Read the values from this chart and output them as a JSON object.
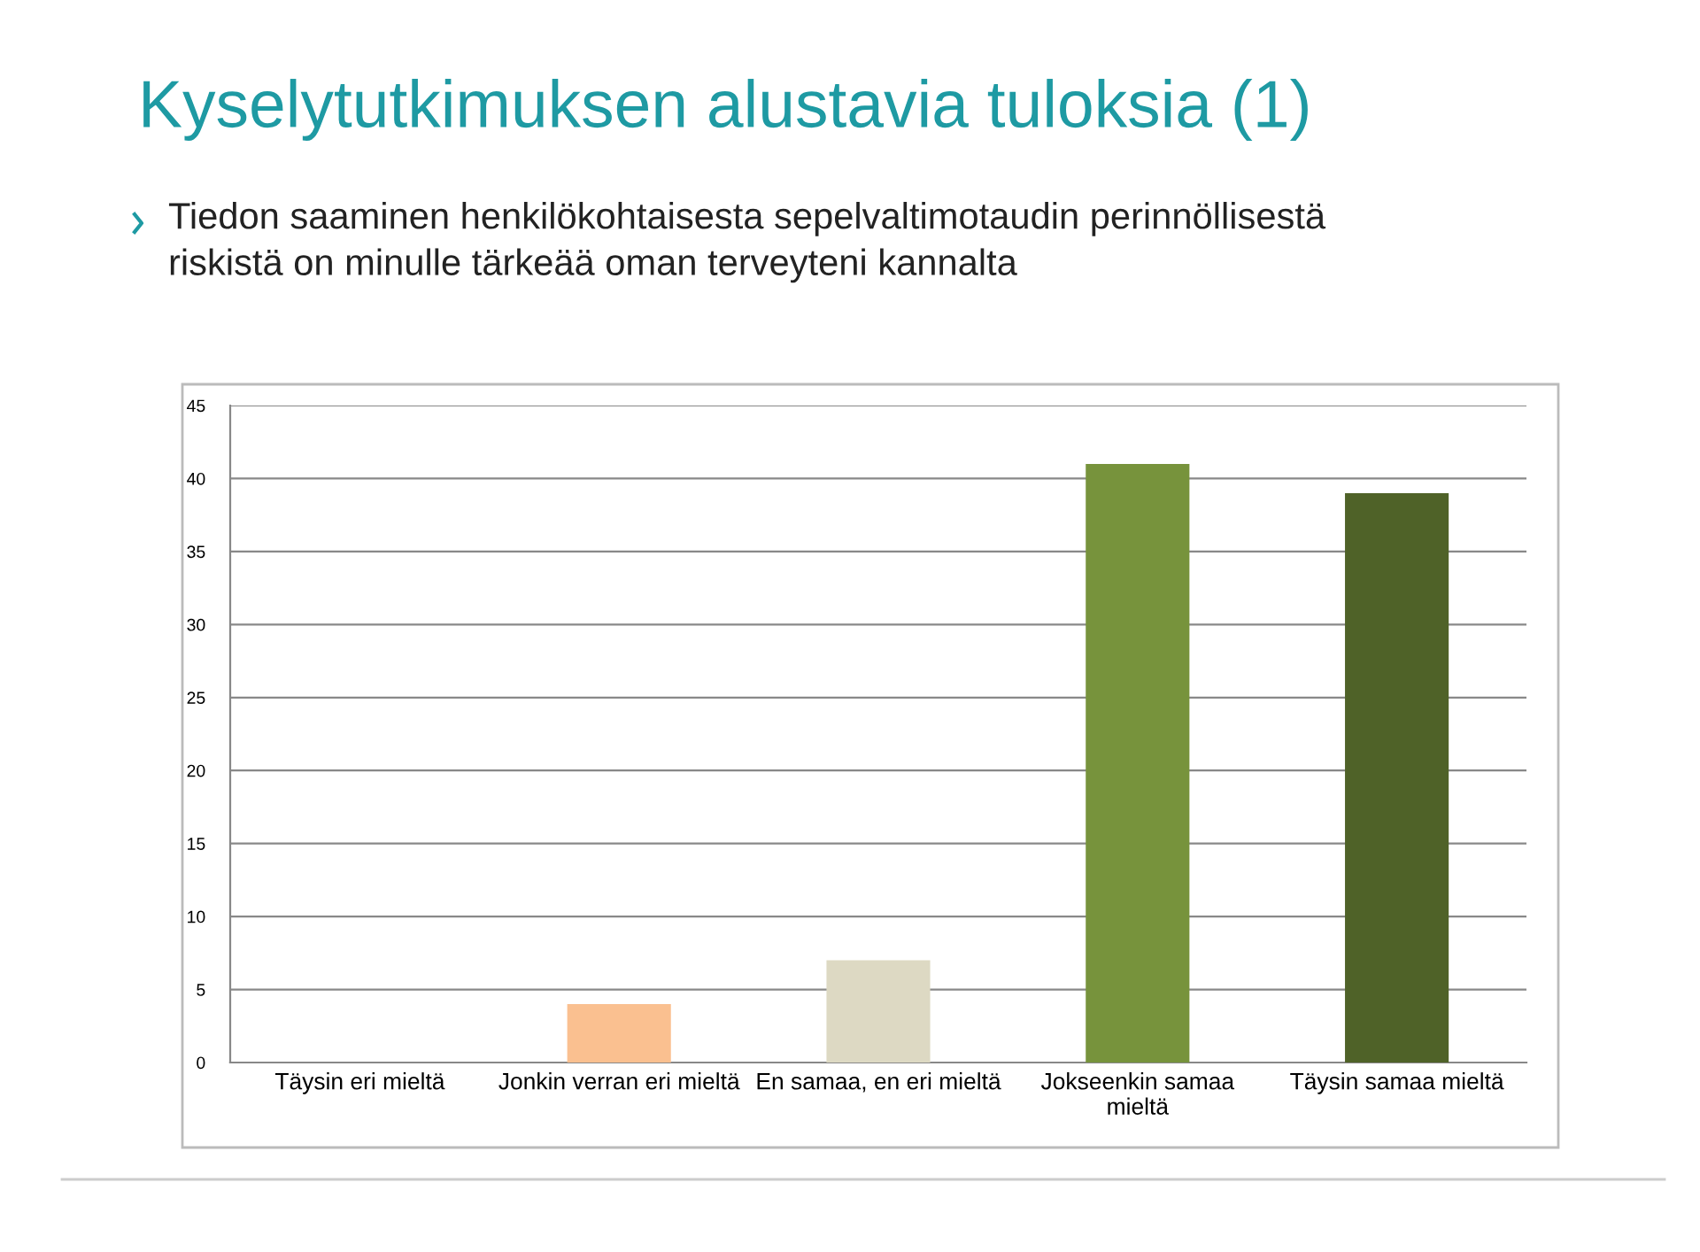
{
  "chart_data": {
    "type": "bar",
    "title": "Kyselytutkimuksen alustavia tuloksia (1)",
    "subtitle": "Tiedon saaminen henkilökohtaisesta sepelvaltimotaudin perinnöllisestä\nriskistä on minulle tärkeää oman terveyteni kannalta",
    "categories": [
      "Täysin eri mieltä",
      "Jonkin verran eri mieltä",
      "En samaa, en eri mieltä",
      "Jokseenkin samaa\nmieltä",
      "Täysin samaa mieltä"
    ],
    "values": [
      0,
      4,
      7,
      41,
      39
    ],
    "colors": [
      "#c0504d",
      "#fac090",
      "#ddd9c3",
      "#77933c",
      "#4f6228"
    ],
    "ylim": [
      0,
      45
    ],
    "yticks": [
      0,
      5,
      10,
      15,
      20,
      25,
      30,
      35,
      40,
      45
    ],
    "grid": "y"
  }
}
